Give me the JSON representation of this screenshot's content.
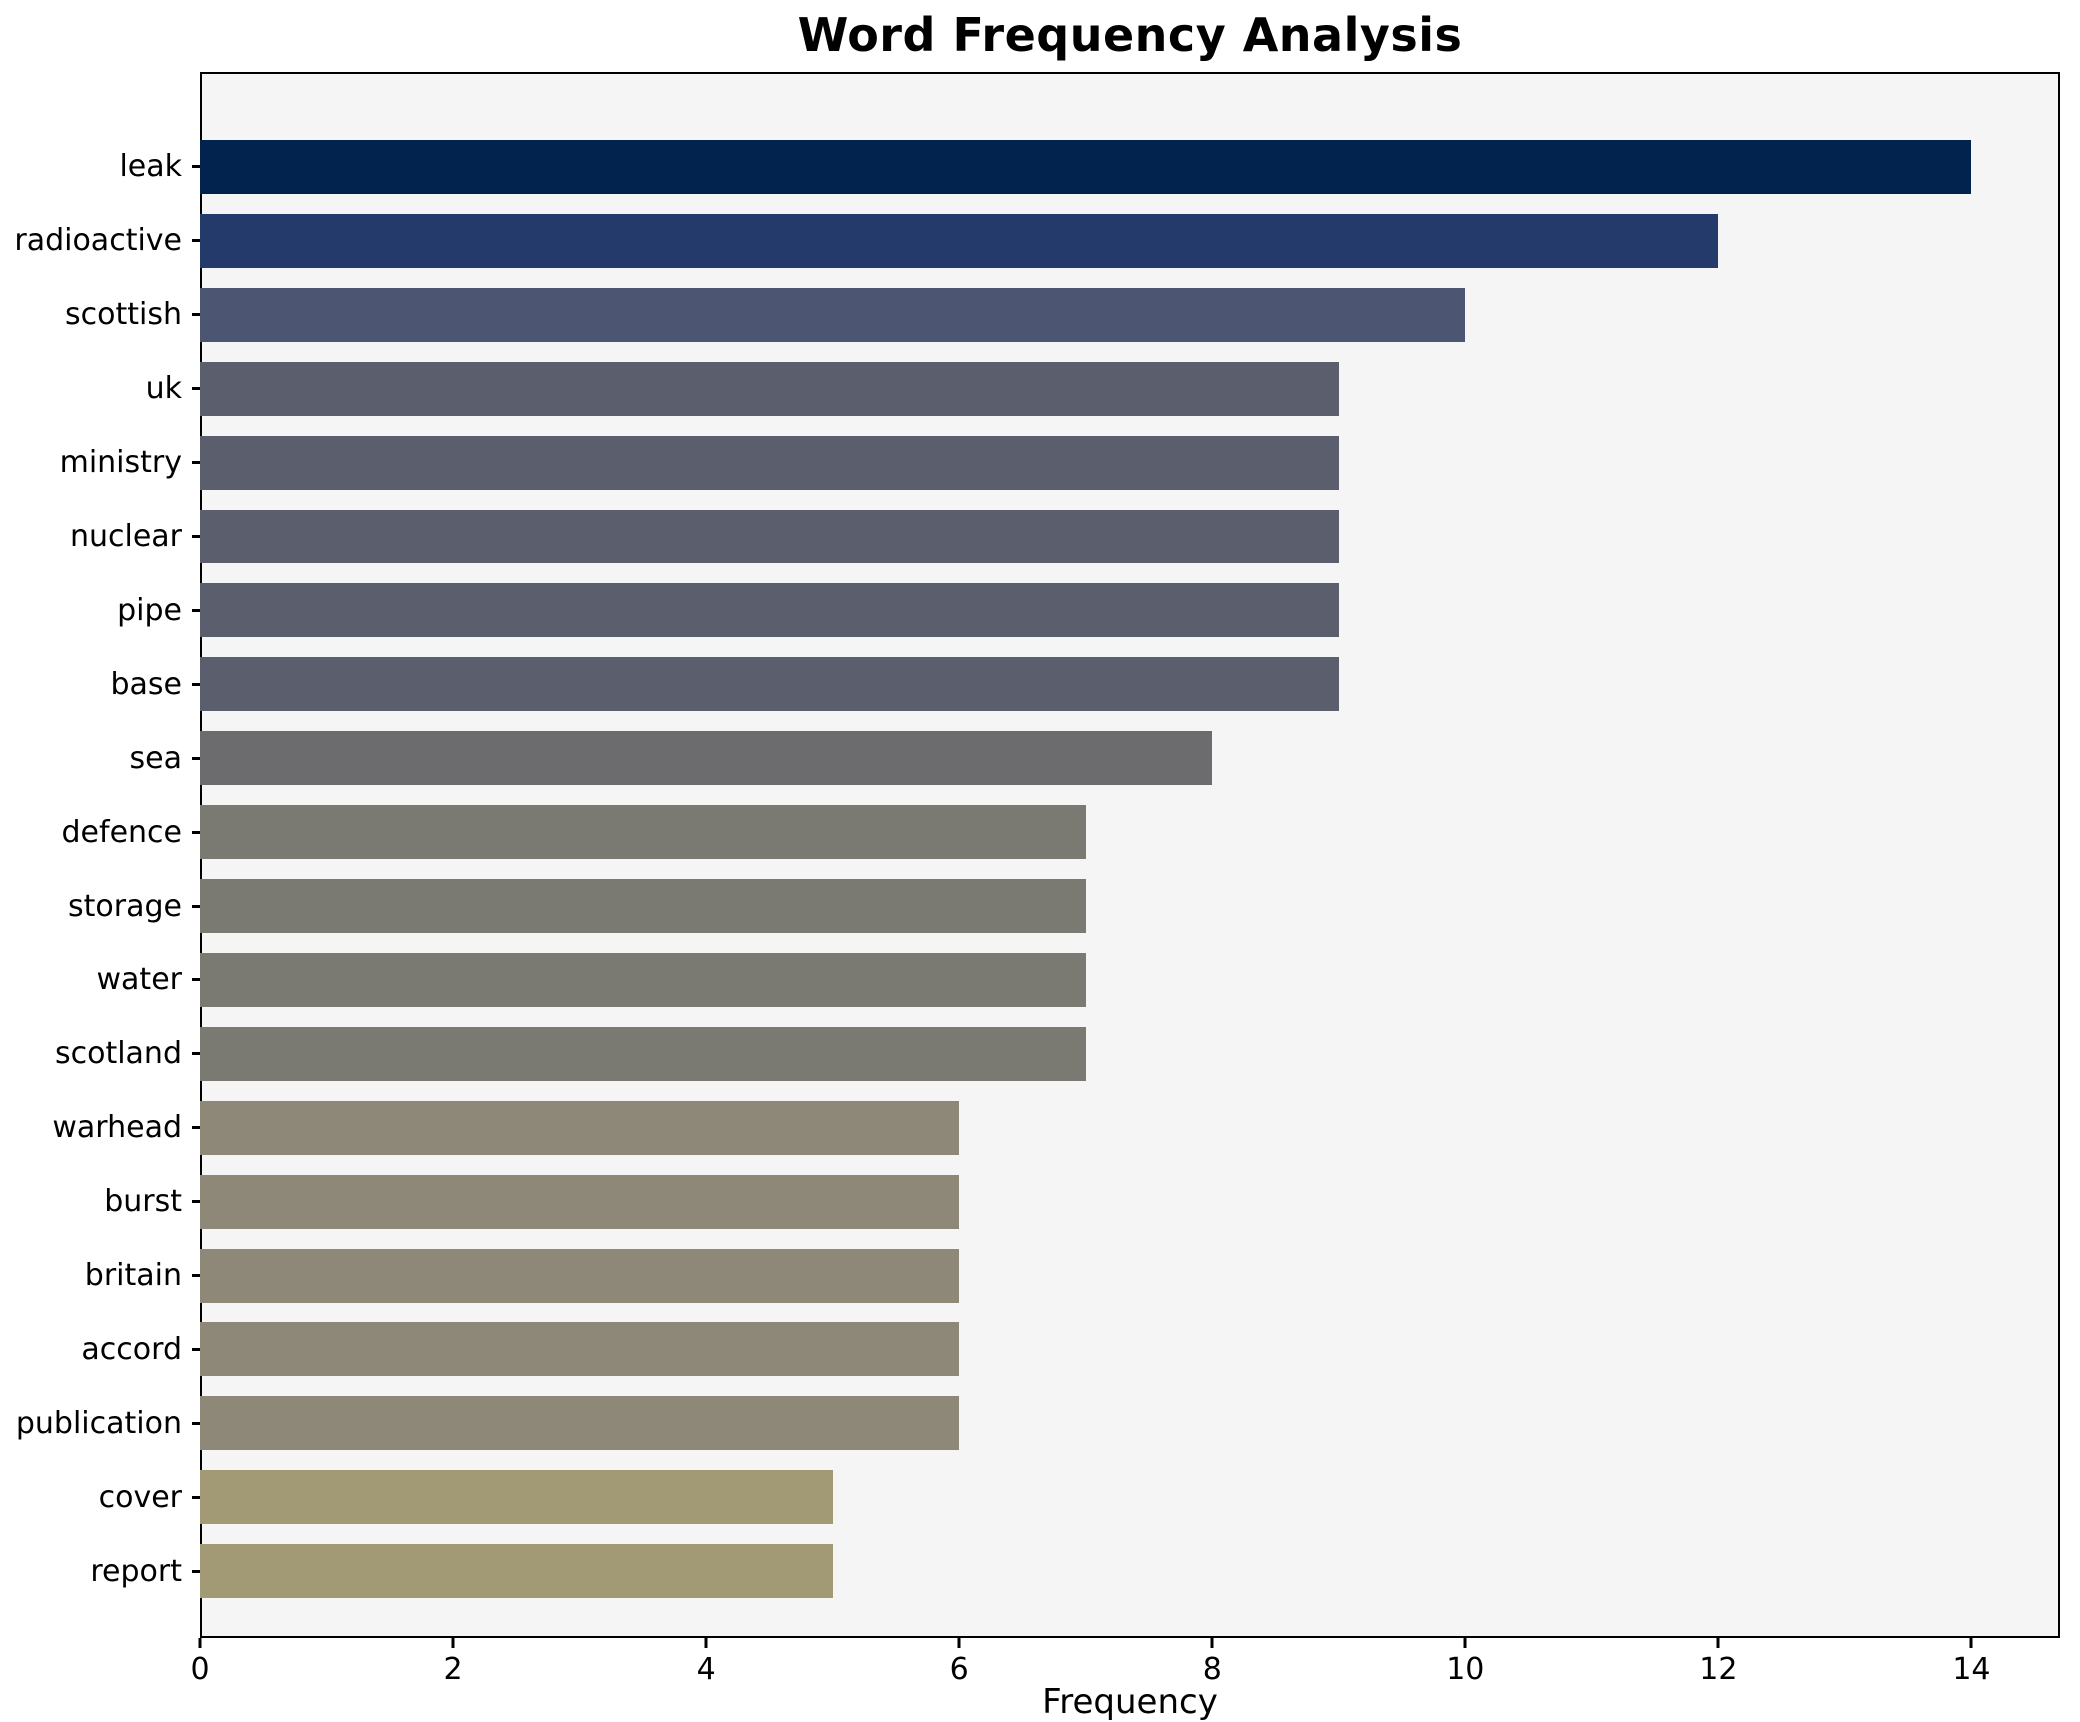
{
  "chart_data": {
    "type": "bar",
    "orientation": "horizontal",
    "title": "Word Frequency Analysis",
    "xlabel": "Frequency",
    "ylabel": "",
    "categories": [
      "leak",
      "radioactive",
      "scottish",
      "uk",
      "ministry",
      "nuclear",
      "pipe",
      "base",
      "sea",
      "defence",
      "storage",
      "water",
      "scotland",
      "warhead",
      "burst",
      "britain",
      "accord",
      "publication",
      "cover",
      "report"
    ],
    "values": [
      14,
      12,
      10,
      9,
      9,
      9,
      9,
      9,
      8,
      7,
      7,
      7,
      7,
      6,
      6,
      6,
      6,
      6,
      5,
      5
    ],
    "bar_colors": [
      "#02234e",
      "#233a6b",
      "#4c5571",
      "#5b5e6d",
      "#5b5e6d",
      "#5b5e6d",
      "#5b5e6d",
      "#5b5e6d",
      "#6c6c6e",
      "#7a7a73",
      "#7a7a73",
      "#7a7a73",
      "#7a7a73",
      "#8d8877",
      "#8d8877",
      "#8d8877",
      "#8d8877",
      "#8d8877",
      "#a19a74",
      "#a19a74"
    ],
    "xlim": [
      0,
      14.7
    ],
    "xticks": [
      0,
      2,
      4,
      6,
      8,
      10,
      12,
      14
    ],
    "grid": false,
    "legend_position": "none",
    "plot_background": "#f5f5f6",
    "page_background": "#ffffff",
    "spine_color": "#000000"
  }
}
